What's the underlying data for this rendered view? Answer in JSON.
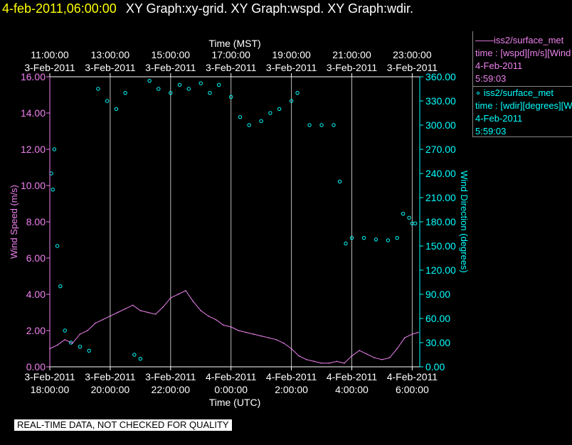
{
  "header": {
    "date": "4-feb-2011,06:00:00",
    "titles": "XY Graph:xy-grid.  XY Graph:wspd.  XY Graph:wdir."
  },
  "legend": {
    "wspd": {
      "line_label": "——iss2/surface_met",
      "time_label": "time : [wspd][m/s][Wind",
      "date": "4-Feb-2011",
      "time": "5:59:03"
    },
    "wdir": {
      "marker": "∘",
      "line_label": "iss2/surface_met",
      "time_label": "time : [wdir][degrees][W",
      "date": "4-Feb-2011",
      "time": "5:59:03"
    }
  },
  "quality_note": "REAL-TIME DATA, NOT CHECKED FOR QUALITY",
  "colors": {
    "background": "#000000",
    "wspd": "#ee82ee",
    "wdir": "#00ffff",
    "grid": "#ffffff",
    "date_text": "#ffff00"
  },
  "chart_data": {
    "type": "line",
    "top_axis": {
      "label": "Time (MST)",
      "ticks": [
        {
          "t": 0,
          "time": "11:00:00",
          "date": "3-Feb-2011"
        },
        {
          "t": 2,
          "time": "13:00:00",
          "date": "3-Feb-2011"
        },
        {
          "t": 4,
          "time": "15:00:00",
          "date": "3-Feb-2011"
        },
        {
          "t": 6,
          "time": "17:00:00",
          "date": "3-Feb-2011"
        },
        {
          "t": 8,
          "time": "19:00:00",
          "date": "3-Feb-2011"
        },
        {
          "t": 10,
          "time": "21:00:00",
          "date": "3-Feb-2011"
        },
        {
          "t": 12,
          "time": "23:00:00",
          "date": "3-Feb-2011"
        }
      ]
    },
    "bottom_axis": {
      "label": "Time (UTC)",
      "ticks": [
        {
          "t": 0,
          "date": "3-Feb-2011",
          "time": "18:00:00"
        },
        {
          "t": 2,
          "date": "3-Feb-2011",
          "time": "20:00:00"
        },
        {
          "t": 4,
          "date": "3-Feb-2011",
          "time": "22:00:00"
        },
        {
          "t": 6,
          "date": "4-Feb-2011",
          "time": "0:00:00"
        },
        {
          "t": 8,
          "date": "4-Feb-2011",
          "time": "2:00:00"
        },
        {
          "t": 10,
          "date": "4-Feb-2011",
          "time": "4:00:00"
        },
        {
          "t": 12,
          "date": "4-Feb-2011",
          "time": "6:00:00"
        }
      ],
      "range_hours": [
        0,
        12.25
      ]
    },
    "left_axis": {
      "label": "Wind Speed (m/s)",
      "ylim": [
        0,
        16
      ],
      "ticks": [
        "0.00",
        "2.00",
        "4.00",
        "6.00",
        "8.00",
        "10.00",
        "12.00",
        "14.00",
        "16.00"
      ]
    },
    "right_axis": {
      "label": "Wind Direction (degrees)",
      "ylim": [
        0,
        360
      ],
      "ticks": [
        "0.00",
        "30.00",
        "60.00",
        "90.00",
        "120.00",
        "150.00",
        "180.00",
        "210.00",
        "240.00",
        "270.00",
        "300.00",
        "330.00",
        "360.00"
      ]
    },
    "series": [
      {
        "name": "iss2/surface_met wspd",
        "axis": "left",
        "style": "line",
        "hours": [
          0.0,
          0.25,
          0.5,
          0.75,
          1.0,
          1.25,
          1.5,
          1.75,
          2.0,
          2.25,
          2.5,
          2.75,
          3.0,
          3.25,
          3.5,
          3.75,
          4.0,
          4.25,
          4.5,
          4.75,
          5.0,
          5.25,
          5.5,
          5.75,
          6.0,
          6.25,
          6.5,
          6.75,
          7.0,
          7.25,
          7.5,
          7.75,
          8.0,
          8.25,
          8.5,
          8.75,
          9.0,
          9.25,
          9.5,
          9.75,
          10.0,
          10.25,
          10.5,
          10.75,
          11.0,
          11.25,
          11.5,
          11.75,
          12.0,
          12.2
        ],
        "values": [
          1.0,
          1.2,
          1.5,
          1.3,
          1.8,
          2.0,
          2.4,
          2.6,
          2.8,
          3.0,
          3.2,
          3.4,
          3.1,
          3.0,
          2.9,
          3.3,
          3.8,
          4.0,
          4.2,
          3.6,
          3.1,
          2.8,
          2.6,
          2.3,
          2.2,
          2.0,
          1.9,
          1.8,
          1.7,
          1.6,
          1.5,
          1.3,
          1.0,
          0.6,
          0.4,
          0.3,
          0.2,
          0.2,
          0.3,
          0.2,
          0.6,
          0.9,
          0.7,
          0.5,
          0.4,
          0.5,
          1.0,
          1.6,
          1.8,
          1.9
        ]
      },
      {
        "name": "iss2/surface_met wdir",
        "axis": "right",
        "style": "markers",
        "hours": [
          0.05,
          0.1,
          0.15,
          0.25,
          0.35,
          0.5,
          0.7,
          1.0,
          1.3,
          1.6,
          1.9,
          2.2,
          2.5,
          2.8,
          3.0,
          3.3,
          3.6,
          4.0,
          4.3,
          4.6,
          5.0,
          5.3,
          5.6,
          6.0,
          6.3,
          6.6,
          7.0,
          7.3,
          7.6,
          8.0,
          8.2,
          8.6,
          9.0,
          9.4,
          9.6,
          9.8,
          10.0,
          10.4,
          10.8,
          11.2,
          11.5,
          11.7,
          11.9,
          12.0,
          12.1
        ],
        "values": [
          240,
          220,
          270,
          150,
          100,
          45,
          30,
          25,
          20,
          345,
          330,
          320,
          340,
          15,
          10,
          355,
          345,
          340,
          350,
          345,
          352,
          340,
          350,
          335,
          310,
          300,
          305,
          315,
          320,
          330,
          340,
          300,
          300,
          300,
          230,
          153,
          160,
          160,
          158,
          157,
          160,
          190,
          185,
          178,
          178
        ]
      }
    ]
  }
}
